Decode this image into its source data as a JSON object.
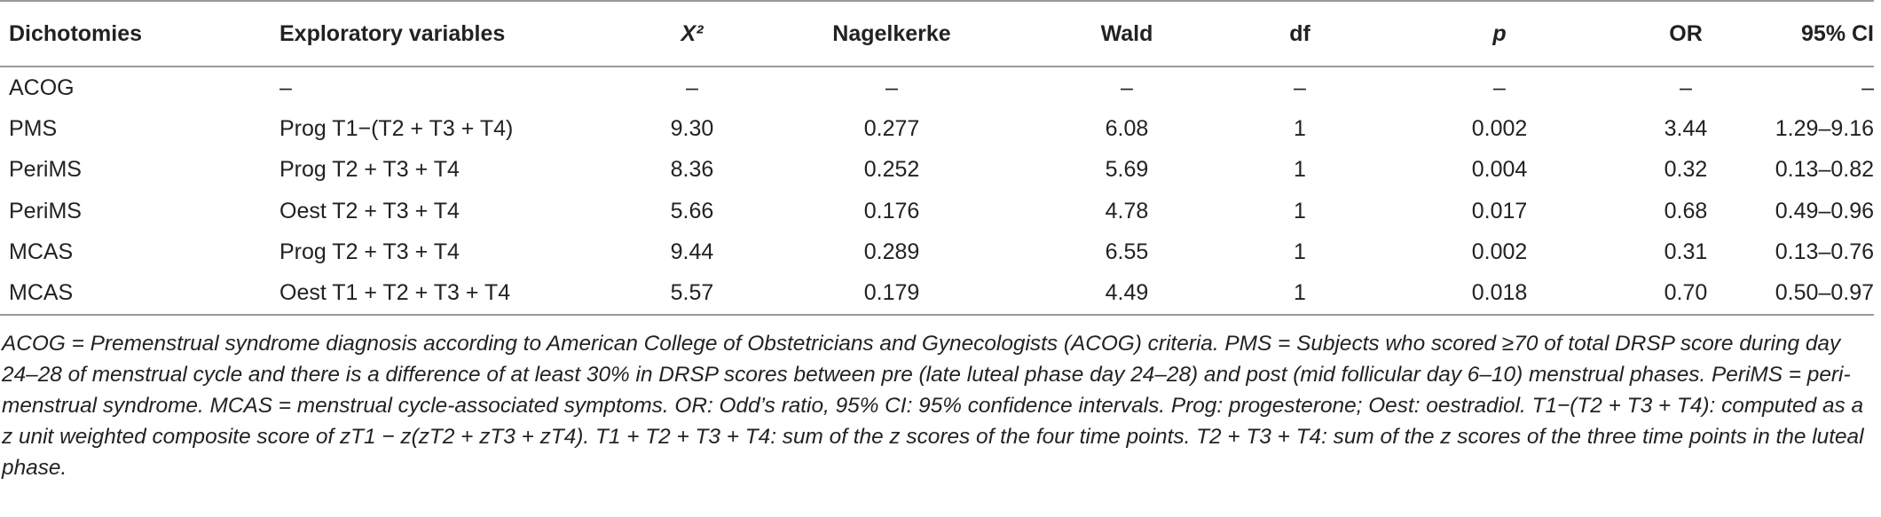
{
  "table": {
    "header": [
      "Dichotomies",
      "Exploratory variables",
      "X²",
      "Nagelkerke",
      "Wald",
      "df",
      "p",
      "OR",
      "95% CI"
    ],
    "rows": [
      [
        "ACOG",
        "–",
        "–",
        "–",
        "–",
        "–",
        "–",
        "–",
        "–"
      ],
      [
        "PMS",
        "Prog T1−(T2 + T3 + T4)",
        "9.30",
        "0.277",
        "6.08",
        "1",
        "0.002",
        "3.44",
        "1.29–9.16"
      ],
      [
        "PeriMS",
        "Prog T2 + T3 + T4",
        "8.36",
        "0.252",
        "5.69",
        "1",
        "0.004",
        "0.32",
        "0.13–0.82"
      ],
      [
        "PeriMS",
        "Oest T2 + T3 + T4",
        "5.66",
        "0.176",
        "4.78",
        "1",
        "0.017",
        "0.68",
        "0.49–0.96"
      ],
      [
        "MCAS",
        "Prog T2 + T3 + T4",
        "9.44",
        "0.289",
        "6.55",
        "1",
        "0.002",
        "0.31",
        "0.13–0.76"
      ],
      [
        "MCAS",
        "Oest T1 + T2 + T3 + T4",
        "5.57",
        "0.179",
        "4.49",
        "1",
        "0.018",
        "0.70",
        "0.50–0.97"
      ]
    ]
  },
  "footnote": "ACOG = Premenstrual syndrome diagnosis according to American College of Obstetricians and Gynecologists (ACOG) criteria. PMS = Subjects who scored ≥70 of total DRSP score during day 24–28 of menstrual cycle and there is a difference of at least 30% in DRSP scores between pre (late luteal phase day 24–28) and post (mid follicular day 6–10) menstrual phases. PeriMS = peri-menstrual syndrome. MCAS = menstrual cycle-associated symptoms. OR: Odd’s ratio, 95% CI: 95% confidence intervals. Prog: progesterone; Oest: oestradiol. T1−(T2 + T3 + T4): computed as a z unit weighted composite score of zT1 − z(zT2 + zT3 + zT4). T1 + T2 + T3 + T4: sum of the z scores of the four time points. T2 + T3 + T4: sum of the z scores of the three time points in the luteal phase."
}
